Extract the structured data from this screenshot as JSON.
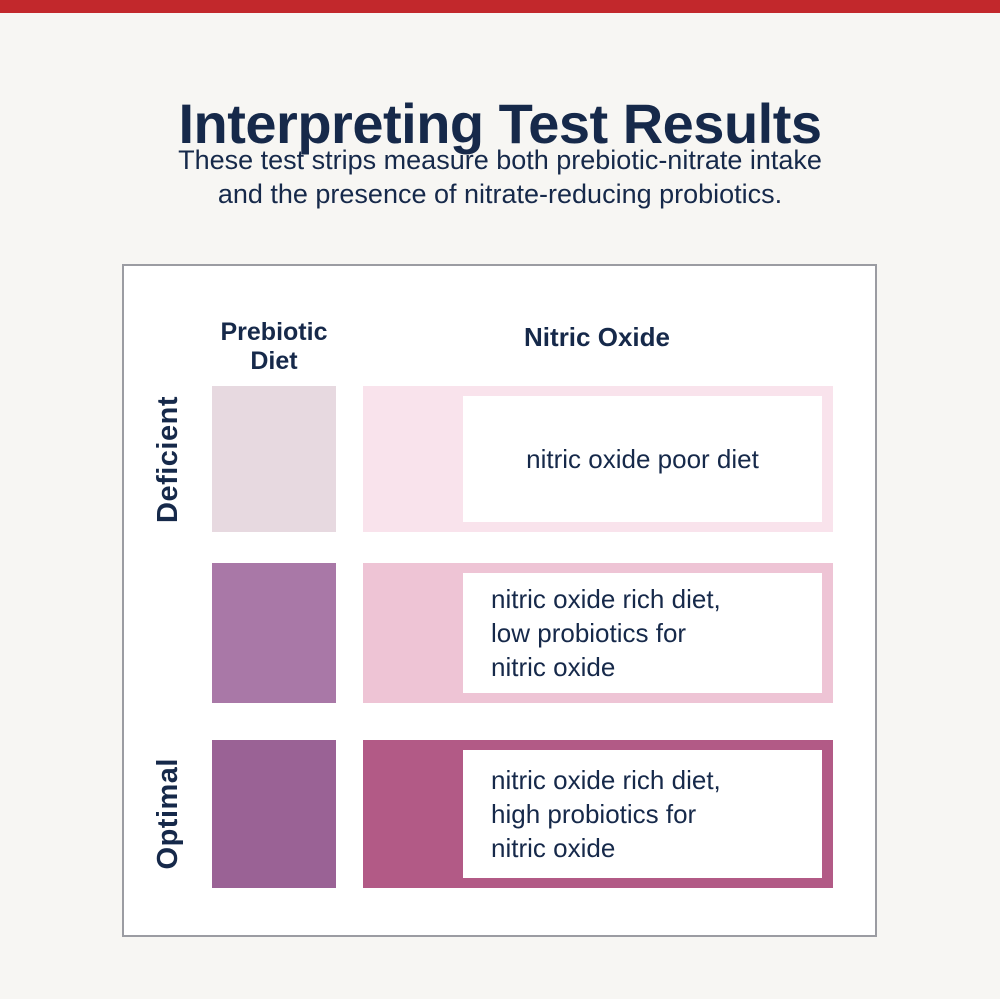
{
  "page": {
    "accent_red": "#c2282c",
    "background_color": "#f7f6f3",
    "navy": "#16294a",
    "card_border": "#9b9ca2"
  },
  "header": {
    "title": "Interpreting Test Results",
    "subtitle_lines": [
      "These test strips measure both prebiotic-nitrate intake",
      "and the presence of nitrate-reducing probiotics."
    ]
  },
  "table": {
    "column_headers": [
      {
        "id": "prebiotic-diet",
        "label_lines": [
          "Prebiotic",
          "Diet"
        ]
      },
      {
        "id": "nitric-oxide",
        "label": "Nitric Oxide"
      }
    ],
    "rows": [
      {
        "row_label": "Deficient",
        "swatch_color": "#e7d9e0",
        "bar_color": "#f9e3ec",
        "result_lines": [
          "nitric oxide poor diet"
        ]
      },
      {
        "row_label": "",
        "swatch_color": "#a978a7",
        "bar_color": "#eec4d5",
        "result_lines": [
          "nitric oxide rich diet,",
          "low probiotics for",
          "nitric oxide"
        ]
      },
      {
        "row_label": "Optimal",
        "swatch_color": "#9a6295",
        "bar_color": "#b25a86",
        "result_lines": [
          "nitric oxide rich diet,",
          "high probiotics for",
          "nitric oxide"
        ]
      }
    ]
  }
}
